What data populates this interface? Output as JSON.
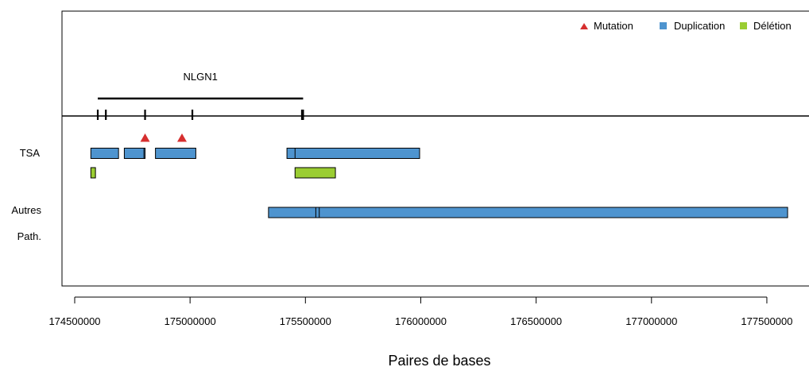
{
  "chart_data": {
    "type": "genomic-track",
    "xlabel": "Paires de bases",
    "xlim": [
      174450000,
      177650000
    ],
    "x_ticks": [
      174500000,
      175000000,
      175500000,
      176000000,
      176500000,
      177000000,
      177500000
    ],
    "x_tick_labels": [
      "174500000",
      "175000000",
      "175500000",
      "176000000",
      "176500000",
      "177000000",
      "177500000"
    ],
    "legend": {
      "placement": "top-right",
      "items": [
        {
          "label": "Mutation",
          "shape": "triangle",
          "color": "#d62f2f"
        },
        {
          "label": "Duplication",
          "shape": "square",
          "color": "#4e94cf"
        },
        {
          "label": "Délétion",
          "shape": "square",
          "color": "#9acd32"
        }
      ]
    },
    "gene": {
      "name": "NLGN1",
      "start": 174600000,
      "end": 175490000,
      "exons": [
        174600000,
        174635000,
        174805000,
        175010000,
        175485000,
        175490000
      ]
    },
    "rows": [
      {
        "label": "TSA"
      },
      {
        "label": "Autres"
      },
      {
        "label": "Path."
      }
    ],
    "mutations": [
      174805000,
      174965000
    ],
    "segments": [
      {
        "row": "TSA",
        "lane": 1,
        "type": "Duplication",
        "start": 174570000,
        "end": 174690000
      },
      {
        "row": "TSA",
        "lane": 1,
        "type": "Duplication",
        "start": 174720000,
        "end": 174805000
      },
      {
        "row": "TSA",
        "lane": 1,
        "type": "Duplication",
        "start": 174715000,
        "end": 174800000
      },
      {
        "row": "TSA",
        "lane": 1,
        "type": "Duplication",
        "start": 174850000,
        "end": 175025000
      },
      {
        "row": "TSA",
        "lane": 1,
        "type": "Duplication",
        "start": 175420000,
        "end": 175630000
      },
      {
        "row": "TSA",
        "lane": 1,
        "type": "Duplication",
        "start": 175455000,
        "end": 175995000
      },
      {
        "row": "TSA",
        "lane": 2,
        "type": "Délétion",
        "start": 174570000,
        "end": 174590000
      },
      {
        "row": "TSA",
        "lane": 2,
        "type": "Délétion",
        "start": 175455000,
        "end": 175630000
      },
      {
        "row": "Autres",
        "lane": 1,
        "type": "Duplication",
        "start": 175340000,
        "end": 177590000
      },
      {
        "row": "Autres",
        "lane": 1,
        "type": "Duplication",
        "start": 175545000,
        "end": 175560000
      }
    ]
  }
}
